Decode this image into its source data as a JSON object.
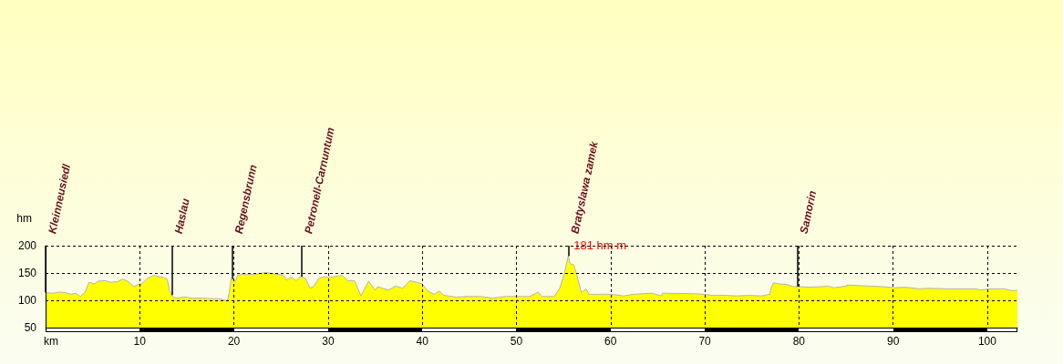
{
  "chart_data": {
    "type": "area",
    "xlabel": "km",
    "ylabel": "hm",
    "color": "#ffff00",
    "x": [
      0,
      0.8,
      1.4,
      2.1,
      2.7,
      3.2,
      3.7,
      4.2,
      4.6,
      5.2,
      5.6,
      6.3,
      6.9,
      7.6,
      8.2,
      8.7,
      9.4,
      9.8,
      10.2,
      10.8,
      11.5,
      11.9,
      12.4,
      12.9,
      13.2,
      13.5,
      14.0,
      14.7,
      15.6,
      16.6,
      17.6,
      18.5,
      19.3,
      19.5,
      19.7,
      19.9,
      20.1,
      20.4,
      21.1,
      22.1,
      23.4,
      24.4,
      25.3,
      25.6,
      26.1,
      26.6,
      27.1,
      27.6,
      28.1,
      28.5,
      29.0,
      29.5,
      30.5,
      31.5,
      32.1,
      32.8,
      33.5,
      33.9,
      34.3,
      35.0,
      35.3,
      35.8,
      36.4,
      37.2,
      37.9,
      38.7,
      39.4,
      40.0,
      40.6,
      41.3,
      41.8,
      42.3,
      43.6,
      44.9,
      46.2,
      47.5,
      48.8,
      50.1,
      51.4,
      52.3,
      52.7,
      54.0,
      54.6,
      55.1,
      55.5,
      55.7,
      56.1,
      56.4,
      56.9,
      57.4,
      57.7,
      58.8,
      60.1,
      61.4,
      62.4,
      64.4,
      65.4,
      65.5,
      68.9,
      70.0,
      70.8,
      72.1,
      73.4,
      74.7,
      76.0,
      76.9,
      77.1,
      77.3,
      77.9,
      78.7,
      79.4,
      80.1,
      81.1,
      82.4,
      83.1,
      83.7,
      85.0,
      85.2,
      86.3,
      87.6,
      88.9,
      90.2,
      91.2,
      92.8,
      93.7,
      95.7,
      98.9,
      99.2,
      100.5,
      101.8,
      102.5,
      103.2
    ],
    "values": [
      114,
      113,
      115,
      114,
      111,
      113,
      107,
      115,
      133,
      130,
      135,
      136,
      133,
      134,
      139,
      135,
      125,
      129,
      130,
      140,
      146,
      144,
      142,
      139,
      117,
      106,
      104,
      106,
      104,
      104,
      103,
      103,
      99,
      114,
      139,
      139,
      133,
      146,
      148,
      147,
      151,
      148,
      146,
      137,
      143,
      136,
      144,
      140,
      122,
      126,
      140,
      143,
      143,
      146,
      136,
      136,
      108,
      122,
      135,
      119,
      125,
      122,
      119,
      126,
      122,
      136,
      133,
      130,
      117,
      111,
      117,
      109,
      106,
      107,
      107,
      104,
      107,
      107,
      107,
      115,
      107,
      107,
      122,
      150,
      181,
      167,
      165,
      147,
      114,
      121,
      111,
      111,
      111,
      108,
      111,
      113,
      108,
      113,
      112,
      111,
      109,
      109,
      108,
      109,
      108,
      111,
      125,
      132,
      130,
      129,
      125,
      125,
      124,
      125,
      126,
      123,
      126,
      128,
      127,
      126,
      125,
      123,
      124,
      121,
      122,
      121,
      121,
      119,
      121,
      121,
      118,
      118
    ],
    "xlim": [
      0,
      103.2
    ],
    "xticks": [
      10,
      20,
      30,
      40,
      50,
      60,
      70,
      80,
      90,
      100
    ],
    "ylim": [
      50,
      200
    ],
    "yticks": [
      50,
      100,
      150,
      200
    ],
    "grid": true,
    "ref_lines": [
      {
        "axis": "x",
        "value": 0,
        "label": "Kleinneusiedl",
        "color": "#000000"
      },
      {
        "axis": "x",
        "value": 13.4,
        "label": "Haslau",
        "color": "#000000"
      },
      {
        "axis": "x",
        "value": 19.8,
        "label": "Regensbrunn",
        "color": "#000000"
      },
      {
        "axis": "x",
        "value": 27.2,
        "label": "Petronell-Carnuntum",
        "color": "#000000"
      },
      {
        "axis": "x",
        "value": 55.5,
        "label": "Bratyslawa zamek",
        "color": "#000000"
      },
      {
        "axis": "x",
        "value": 79.8,
        "label": "Samorin",
        "color": "#000000"
      }
    ],
    "annotations": [
      {
        "text": "181 hm m",
        "x": 55.5,
        "y": 181
      }
    ]
  }
}
